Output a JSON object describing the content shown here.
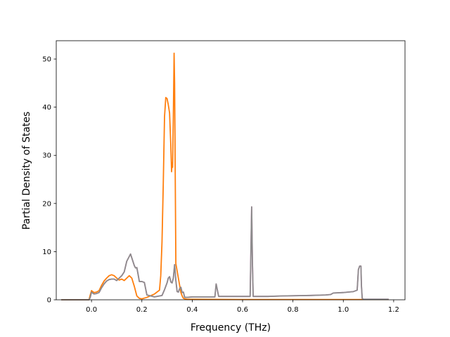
{
  "chart_data": {
    "type": "line",
    "title": "",
    "xlabel": "Frequency (THz)",
    "ylabel": "Partial Density of States",
    "xlim": [
      -0.14,
      1.245
    ],
    "ylim": [
      0,
      53.8
    ],
    "x_ticks": [
      0.0,
      0.2,
      0.4,
      0.6,
      0.8,
      1.0,
      1.2
    ],
    "x_tick_labels": [
      "0.0",
      "0.2",
      "0.4",
      "0.6",
      "0.8",
      "1.0",
      "1.2"
    ],
    "y_ticks": [
      0,
      10,
      20,
      30,
      40,
      50
    ],
    "y_tick_labels": [
      "0",
      "10",
      "20",
      "30",
      "40",
      "50"
    ],
    "grid": false,
    "legend": "none",
    "series": [
      {
        "color": "#e377c2",
        "x": [
          -0.12,
          -0.01,
          -0.005,
          0.0,
          0.01,
          0.02,
          0.03,
          0.04,
          0.05,
          0.06,
          0.07,
          0.08,
          0.09,
          0.1,
          0.11,
          0.12,
          0.13,
          0.14,
          0.15,
          0.155,
          0.16,
          0.165,
          0.17,
          0.175,
          0.18,
          0.185,
          0.19,
          0.2,
          0.21,
          0.22,
          0.25,
          0.28,
          0.29,
          0.3,
          0.305,
          0.31,
          0.315,
          0.32,
          0.325,
          0.33,
          0.335,
          0.34,
          0.345,
          0.35,
          0.355,
          0.36,
          0.365,
          0.37,
          0.38,
          0.4,
          0.45,
          0.49,
          0.495,
          0.5,
          0.505,
          0.51,
          0.55,
          0.6,
          0.63,
          0.633,
          0.636,
          0.639,
          0.642,
          0.645,
          0.65,
          0.7,
          0.76,
          0.87,
          0.93,
          0.95,
          0.96,
          1.0,
          1.02,
          1.04,
          1.055,
          1.06,
          1.065,
          1.07,
          1.072,
          1.075,
          1.08,
          1.18
        ],
        "y": [
          0,
          0,
          0.5,
          1.6,
          1.2,
          1.3,
          1.5,
          2.5,
          3.3,
          3.9,
          4.2,
          4.3,
          4.3,
          4.0,
          4.5,
          5.0,
          5.8,
          8.0,
          9.0,
          9.5,
          8.7,
          7.9,
          7.1,
          6.6,
          6.7,
          5.3,
          3.8,
          3.8,
          3.6,
          1.0,
          0.6,
          0.9,
          2.1,
          3.5,
          4.5,
          4.8,
          3.7,
          3.5,
          4.5,
          7.3,
          4.0,
          1.7,
          1.6,
          2.3,
          2.6,
          1.5,
          1.6,
          0.5,
          0.5,
          0.6,
          0.6,
          0.6,
          3.3,
          2.0,
          0.7,
          0.7,
          0.7,
          0.7,
          0.7,
          10.0,
          19.3,
          8.0,
          0.7,
          0.7,
          0.7,
          0.7,
          0.8,
          0.9,
          1.0,
          1.1,
          1.4,
          1.5,
          1.6,
          1.7,
          2.0,
          6.3,
          7.0,
          7.0,
          3.0,
          0.3,
          0.1,
          0.1
        ]
      },
      {
        "color": "#ff7f0e",
        "x": [
          -0.12,
          -0.01,
          -0.005,
          0.0,
          0.01,
          0.02,
          0.03,
          0.04,
          0.05,
          0.06,
          0.07,
          0.08,
          0.09,
          0.1,
          0.11,
          0.12,
          0.13,
          0.14,
          0.15,
          0.16,
          0.17,
          0.18,
          0.19,
          0.2,
          0.22,
          0.25,
          0.27,
          0.275,
          0.28,
          0.285,
          0.29,
          0.295,
          0.3,
          0.305,
          0.31,
          0.315,
          0.318,
          0.32,
          0.322,
          0.325,
          0.328,
          0.33,
          0.332,
          0.335,
          0.34,
          0.345,
          0.35,
          0.355,
          0.36,
          0.365,
          0.37,
          0.38,
          0.4,
          0.6,
          0.8,
          1.0,
          1.18
        ],
        "y": [
          0,
          0,
          1.0,
          1.9,
          1.5,
          1.6,
          1.9,
          3.0,
          3.9,
          4.5,
          5.0,
          5.2,
          5.0,
          4.5,
          4.1,
          4.3,
          4.0,
          4.5,
          5.0,
          4.5,
          2.8,
          0.8,
          0.3,
          0.2,
          0.5,
          1.2,
          2.0,
          5.0,
          12.0,
          24.0,
          38.0,
          42.0,
          41.8,
          40.5,
          38.8,
          32.0,
          26.6,
          28.5,
          27.5,
          38.0,
          51.2,
          45.0,
          30.0,
          7.5,
          6.0,
          4.5,
          3.0,
          1.5,
          0.8,
          0.3,
          0.2,
          0.1,
          0.1,
          0.05,
          0.05,
          0.05,
          0.05
        ]
      },
      {
        "color": "#8c8c8c",
        "x": [
          -0.12,
          -0.01,
          -0.005,
          0.0,
          0.01,
          0.02,
          0.03,
          0.04,
          0.05,
          0.06,
          0.07,
          0.08,
          0.09,
          0.1,
          0.11,
          0.12,
          0.13,
          0.14,
          0.15,
          0.155,
          0.16,
          0.165,
          0.17,
          0.175,
          0.18,
          0.185,
          0.19,
          0.2,
          0.21,
          0.22,
          0.25,
          0.28,
          0.29,
          0.3,
          0.305,
          0.31,
          0.315,
          0.32,
          0.325,
          0.33,
          0.335,
          0.34,
          0.345,
          0.35,
          0.355,
          0.36,
          0.365,
          0.37,
          0.38,
          0.4,
          0.45,
          0.49,
          0.495,
          0.5,
          0.505,
          0.51,
          0.55,
          0.6,
          0.63,
          0.633,
          0.636,
          0.639,
          0.642,
          0.645,
          0.65,
          0.7,
          0.76,
          0.87,
          0.93,
          0.95,
          0.96,
          1.0,
          1.02,
          1.04,
          1.055,
          1.06,
          1.065,
          1.07,
          1.072,
          1.075,
          1.08,
          1.18
        ],
        "y": [
          0,
          0,
          0.5,
          1.6,
          1.2,
          1.3,
          1.5,
          2.5,
          3.3,
          3.9,
          4.2,
          4.3,
          4.3,
          4.0,
          4.5,
          5.0,
          5.8,
          8.0,
          9.0,
          9.5,
          8.7,
          7.9,
          7.1,
          6.6,
          6.7,
          5.3,
          3.8,
          3.8,
          3.6,
          1.0,
          0.6,
          0.9,
          2.1,
          3.5,
          4.5,
          4.8,
          3.7,
          3.5,
          4.5,
          7.3,
          4.0,
          1.7,
          1.6,
          2.3,
          2.6,
          1.5,
          1.6,
          0.5,
          0.5,
          0.6,
          0.6,
          0.6,
          3.3,
          2.0,
          0.7,
          0.7,
          0.7,
          0.7,
          0.7,
          10.0,
          19.3,
          8.0,
          0.7,
          0.7,
          0.7,
          0.7,
          0.8,
          0.9,
          1.0,
          1.1,
          1.4,
          1.5,
          1.6,
          1.7,
          2.0,
          6.3,
          7.0,
          7.0,
          3.0,
          0.3,
          0.1,
          0.1
        ]
      }
    ]
  }
}
